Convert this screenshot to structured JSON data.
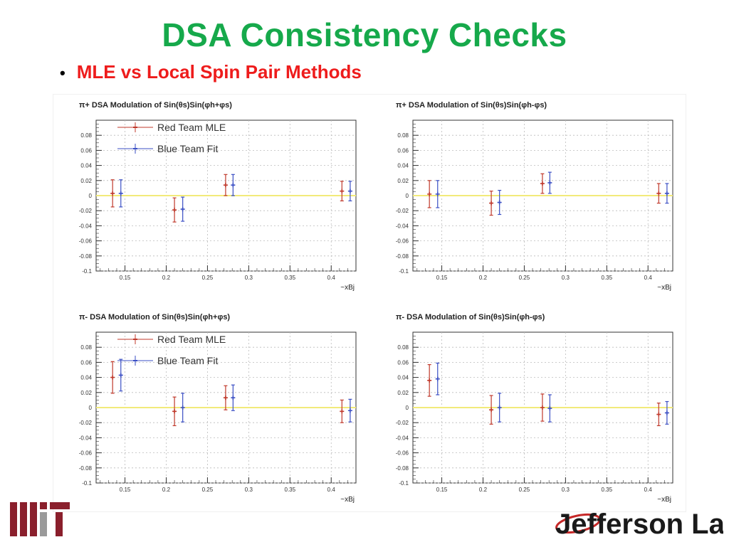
{
  "slide": {
    "title": "DSA Consistency Checks",
    "bullet": "MLE vs Local Spin Pair Methods"
  },
  "logos": {
    "left": "MIT",
    "right": "Jefferson Lab"
  },
  "colors": {
    "title": "#16a94b",
    "bullet": "#ee1c1c",
    "red_team": "#c0392b",
    "blue_team": "#3b4fc4",
    "zero_line": "#f2ea7a"
  },
  "chart_data": [
    {
      "type": "scatter",
      "title": "π+ DSA Modulation of Sin(θs)Sin(φh+φs)",
      "xlabel": "~xBj",
      "xlim": [
        0.115,
        0.43
      ],
      "ylim": [
        -0.1,
        0.1
      ],
      "xticks": [
        "0.15",
        "0.2",
        "0.25",
        "0.3",
        "0.35",
        "0.4"
      ],
      "yticks": [
        "0.08",
        "0.06",
        "0.04",
        "0.02",
        "0",
        "-0.02",
        "-0.04",
        "-0.06",
        "-0.08",
        "-0.1"
      ],
      "grid": true,
      "legend": "top-left",
      "series": [
        {
          "name": "Red Team MLE",
          "x": [
            0.135,
            0.21,
            0.272,
            0.413
          ],
          "y": [
            0.003,
            -0.019,
            0.014,
            0.006
          ],
          "err": [
            0.018,
            0.016,
            0.014,
            0.013
          ]
        },
        {
          "name": "Blue Team Fit",
          "x": [
            0.145,
            0.22,
            0.281,
            0.423
          ],
          "y": [
            0.003,
            -0.018,
            0.014,
            0.006
          ],
          "err": [
            0.018,
            0.016,
            0.014,
            0.013
          ]
        }
      ]
    },
    {
      "type": "scatter",
      "title": "π+ DSA Modulation of Sin(θs)Sin(φh-φs)",
      "xlabel": "~xBj",
      "xlim": [
        0.115,
        0.43
      ],
      "ylim": [
        -0.1,
        0.1
      ],
      "xticks": [
        "0.15",
        "0.2",
        "0.25",
        "0.3",
        "0.35",
        "0.4"
      ],
      "yticks": [
        "0.08",
        "0.06",
        "0.04",
        "0.02",
        "0",
        "-0.02",
        "-0.04",
        "-0.06",
        "-0.08",
        "-0.1"
      ],
      "grid": true,
      "legend": "",
      "series": [
        {
          "name": "Red Team MLE",
          "x": [
            0.135,
            0.21,
            0.272,
            0.413
          ],
          "y": [
            0.002,
            -0.01,
            0.016,
            0.003
          ],
          "err": [
            0.018,
            0.016,
            0.013,
            0.013
          ]
        },
        {
          "name": "Blue Team Fit",
          "x": [
            0.145,
            0.22,
            0.281,
            0.423
          ],
          "y": [
            0.002,
            -0.009,
            0.017,
            0.003
          ],
          "err": [
            0.018,
            0.016,
            0.014,
            0.013
          ]
        }
      ]
    },
    {
      "type": "scatter",
      "title": "π- DSA Modulation of Sin(θs)Sin(φh+φs)",
      "xlabel": "~xBj",
      "xlim": [
        0.115,
        0.43
      ],
      "ylim": [
        -0.1,
        0.1
      ],
      "xticks": [
        "0.15",
        "0.2",
        "0.25",
        "0.3",
        "0.35",
        "0.4"
      ],
      "yticks": [
        "0.08",
        "0.06",
        "0.04",
        "0.02",
        "0",
        "-0.02",
        "-0.04",
        "-0.06",
        "-0.08",
        "-0.1"
      ],
      "grid": true,
      "legend": "top-left",
      "series": [
        {
          "name": "Red Team MLE",
          "x": [
            0.135,
            0.21,
            0.272,
            0.413
          ],
          "y": [
            0.04,
            -0.005,
            0.013,
            -0.005
          ],
          "err": [
            0.021,
            0.019,
            0.016,
            0.015
          ]
        },
        {
          "name": "Blue Team Fit",
          "x": [
            0.145,
            0.22,
            0.281,
            0.423
          ],
          "y": [
            0.043,
            0.0,
            0.013,
            -0.004
          ],
          "err": [
            0.021,
            0.019,
            0.017,
            0.015
          ]
        }
      ]
    },
    {
      "type": "scatter",
      "title": "π- DSA Modulation of Sin(θs)Sin(φh-φs)",
      "xlabel": "~xBj",
      "xlim": [
        0.115,
        0.43
      ],
      "ylim": [
        -0.1,
        0.1
      ],
      "xticks": [
        "0.15",
        "0.2",
        "0.25",
        "0.3",
        "0.35",
        "0.4"
      ],
      "yticks": [
        "0.08",
        "0.06",
        "0.04",
        "0.02",
        "0",
        "-0.02",
        "-0.04",
        "-0.06",
        "-0.08",
        "-0.1"
      ],
      "grid": true,
      "legend": "",
      "series": [
        {
          "name": "Red Team MLE",
          "x": [
            0.135,
            0.21,
            0.272,
            0.413
          ],
          "y": [
            0.036,
            -0.003,
            0.0,
            -0.009
          ],
          "err": [
            0.021,
            0.019,
            0.018,
            0.015
          ]
        },
        {
          "name": "Blue Team Fit",
          "x": [
            0.145,
            0.22,
            0.281,
            0.423
          ],
          "y": [
            0.038,
            0.0,
            -0.001,
            -0.007
          ],
          "err": [
            0.021,
            0.019,
            0.018,
            0.015
          ]
        }
      ]
    }
  ]
}
